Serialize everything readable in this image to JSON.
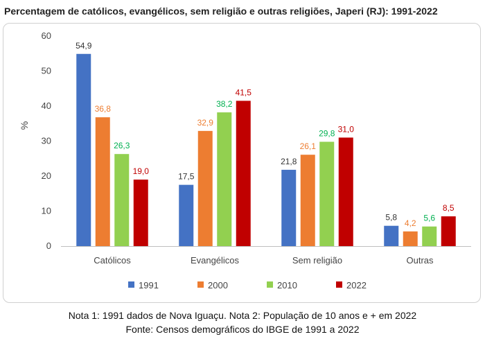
{
  "chart_data": {
    "type": "bar",
    "title": "Percentagem de católicos, evangélicos, sem religião e outras religiões, Japeri (RJ): 1991-2022",
    "categories": [
      "Católicos",
      "Evangélicos",
      "Sem religião",
      "Outras"
    ],
    "series": [
      {
        "name": "1991",
        "color": "#4472C4",
        "label_color": "#333333",
        "values": [
          54.9,
          17.5,
          21.8,
          5.8
        ],
        "labels": [
          "54,9",
          "17,5",
          "21,8",
          "5,8"
        ]
      },
      {
        "name": "2000",
        "color": "#ED7D31",
        "label_color": "#ED7D31",
        "values": [
          36.8,
          32.9,
          26.1,
          4.2
        ],
        "labels": [
          "36,8",
          "32,9",
          "26,1",
          "4,2"
        ]
      },
      {
        "name": "2010",
        "color": "#92D050",
        "label_color": "#00B050",
        "values": [
          26.3,
          38.2,
          29.8,
          5.6
        ],
        "labels": [
          "26,3",
          "38,2",
          "29,8",
          "5,6"
        ]
      },
      {
        "name": "2022",
        "color": "#C00000",
        "label_color": "#C00000",
        "values": [
          19.0,
          41.5,
          31.0,
          8.5
        ],
        "labels": [
          "19,0",
          "41,5",
          "31,0",
          "8,5"
        ]
      }
    ],
    "ylabel": "%",
    "xlabel": "",
    "ylim": [
      0,
      60
    ],
    "yticks": [
      0,
      10,
      20,
      30,
      40,
      50,
      60
    ],
    "grid": false,
    "legend": "bottom"
  },
  "notes": {
    "line1": "Nota 1: 1991 dados de Nova Iguaçu. Nota 2: População de 10 anos e + em 2022",
    "line2": "Fonte: Censos demográficos do IBGE de 1991 a 2022"
  }
}
